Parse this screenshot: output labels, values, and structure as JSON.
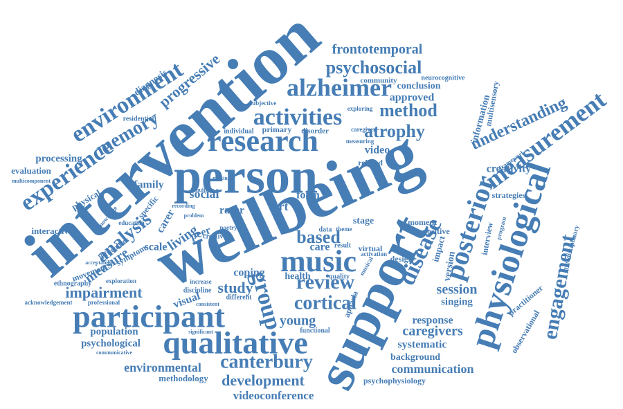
{
  "words": [
    "intervention",
    "wellbeing",
    "support",
    "person",
    "physiological",
    "qualitative",
    "participant",
    "measurement",
    "experience",
    "environment",
    "research",
    "alzheimer",
    "activities",
    "music",
    "posterior",
    "engagement",
    "disease",
    "canterbury",
    "group",
    "review",
    "cortical",
    "psychosocial",
    "frontotemporal",
    "method",
    "atrophy",
    "understanding",
    "memory",
    "progressive",
    "analysis",
    "based",
    "impairment",
    "development",
    "environmental",
    "videoconference",
    "communication",
    "caregivers",
    "session",
    "response",
    "systematic",
    "background",
    "psychophysiology",
    "methodology",
    "psychological",
    "population",
    "communicative",
    "young",
    "singing",
    "study",
    "coping",
    "health",
    "creativity",
    "strategies",
    "family",
    "social",
    "scale",
    "measure",
    "living",
    "carer",
    "peer",
    "visual",
    "version",
    "interview",
    "impact",
    "practitioner",
    "observational",
    "interdisciplinary",
    "multisensory",
    "information",
    "approved",
    "conclusion",
    "community",
    "neurocognitive",
    "diagnosis",
    "residential",
    "processing",
    "evaluation",
    "multicomponent",
    "physical",
    "interactive",
    "symptom",
    "movement",
    "ethnography",
    "acknowledgement",
    "professional",
    "exploration",
    "education",
    "specific",
    "difficulties",
    "creative",
    "rarer",
    "art",
    "form",
    "related",
    "video",
    "stage",
    "design",
    "positive",
    "moment",
    "care",
    "virtual",
    "quality",
    "aphasia",
    "functional",
    "subjective",
    "primary",
    "disorder",
    "individual",
    "exploring",
    "caregiver",
    "measuring",
    "data",
    "theme",
    "result",
    "discipline",
    "increase",
    "different",
    "consistent",
    "significant",
    "poetry",
    "problem",
    "recording",
    "musical",
    "activation",
    "framework",
    "program",
    "knowledge",
    "acceptability",
    "making",
    "multiple"
  ]
}
